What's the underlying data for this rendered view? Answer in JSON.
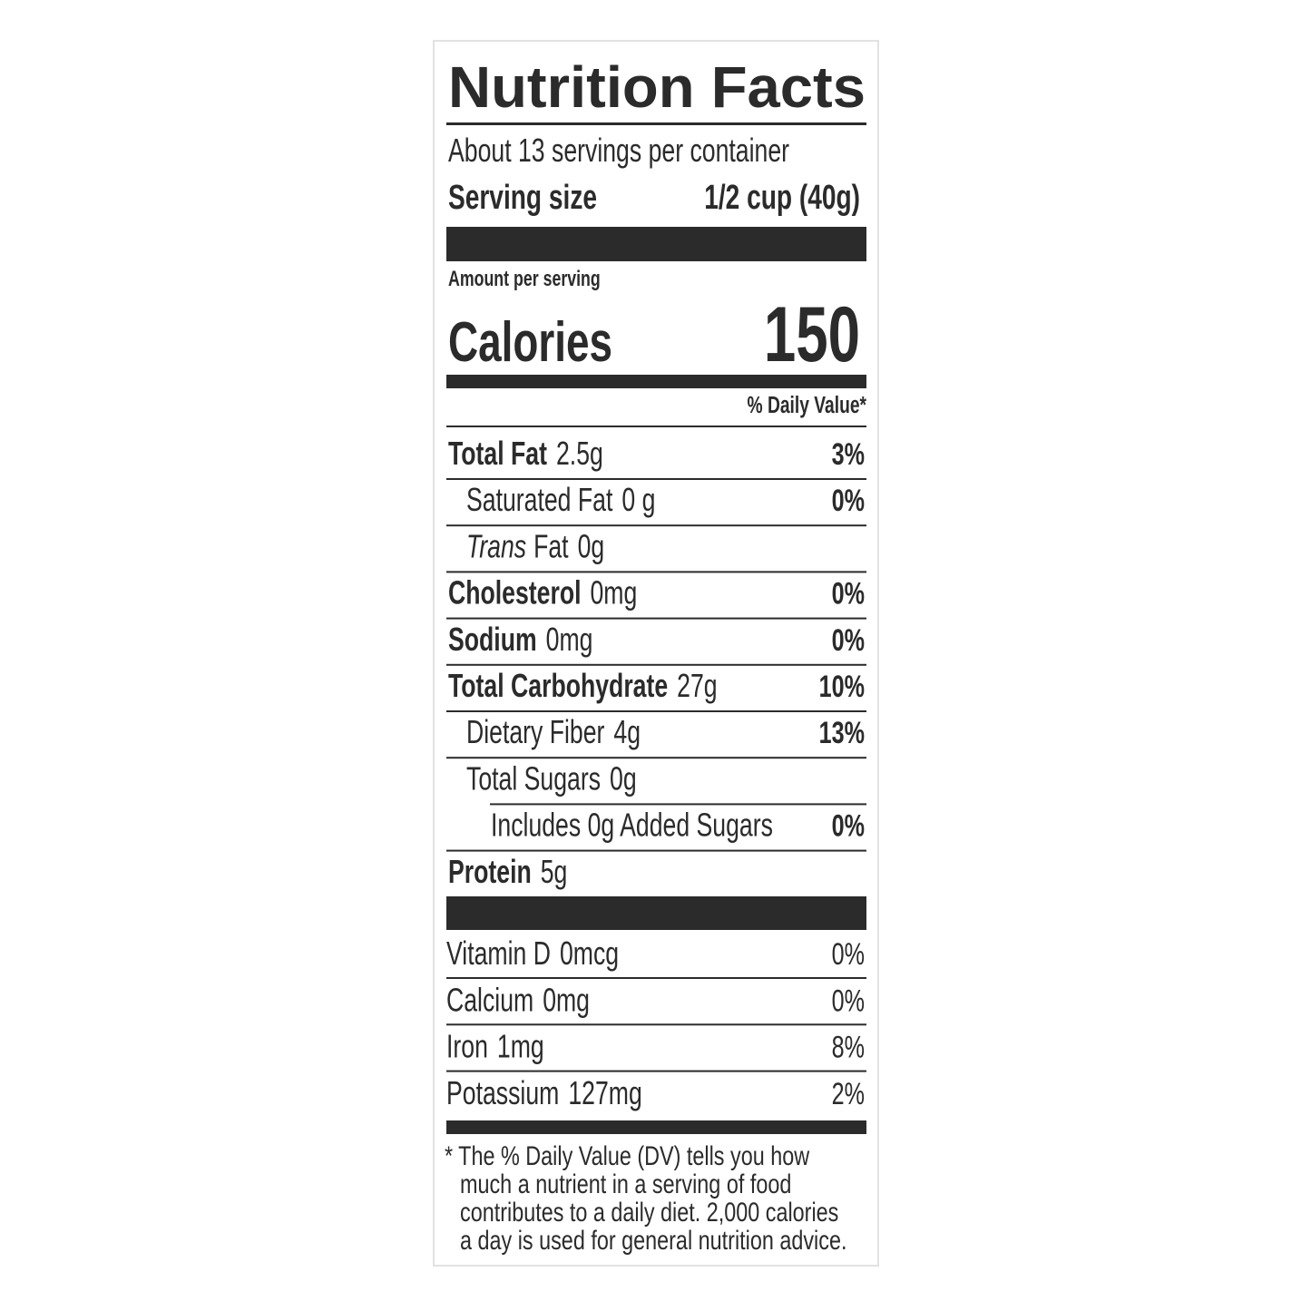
{
  "header": {
    "title": "Nutrition Facts",
    "servings": "About 13 servings per container",
    "serving_size_label": "Serving size",
    "serving_size_value": "1/2 cup (40g)"
  },
  "calories": {
    "amount_label": "Amount per serving",
    "label": "Calories",
    "value": "150"
  },
  "daily_value_header": "% Daily Value*",
  "nutrients": [
    {
      "name": "Total Fat",
      "amount": "2.5g",
      "dv": "3%",
      "bold": true,
      "indent": 0
    },
    {
      "name": "Saturated Fat",
      "amount": "0 g",
      "dv": "0%",
      "bold": false,
      "indent": 1
    },
    {
      "name_italic": "Trans",
      "name": "Fat",
      "amount": "0g",
      "bold": false,
      "indent": 1
    },
    {
      "name": "Cholesterol",
      "amount": "0mg",
      "dv": "0%",
      "bold": true,
      "indent": 0
    },
    {
      "name": "Sodium",
      "amount": "0mg",
      "dv": "0%",
      "bold": true,
      "indent": 0
    },
    {
      "name": "Total Carbohydrate",
      "amount": "27g",
      "dv": "10%",
      "bold": true,
      "indent": 0
    },
    {
      "name": "Dietary Fiber",
      "amount": "4g",
      "dv": "13%",
      "bold": false,
      "indent": 1
    },
    {
      "name": "Total Sugars",
      "amount": "0g",
      "bold": false,
      "indent": 1
    },
    {
      "name": "Includes 0g Added Sugars",
      "dv": "0%",
      "bold": false,
      "indent": 2
    },
    {
      "name": "Protein",
      "amount": "5g",
      "bold": true,
      "indent": 0
    }
  ],
  "vitamins": [
    {
      "name": "Vitamin D",
      "amount": "0mcg",
      "dv": "0%"
    },
    {
      "name": "Calcium",
      "amount": "0mg",
      "dv": "0%"
    },
    {
      "name": "Iron",
      "amount": "1mg",
      "dv": "8%"
    },
    {
      "name": "Potassium",
      "amount": "127mg",
      "dv": "2%"
    }
  ],
  "footnote": [
    "* The % Daily Value (DV) tells you how",
    "much a nutrient in a serving of food",
    "contributes to a daily diet. 2,000 calories",
    "a day is used for general nutrition advice."
  ]
}
